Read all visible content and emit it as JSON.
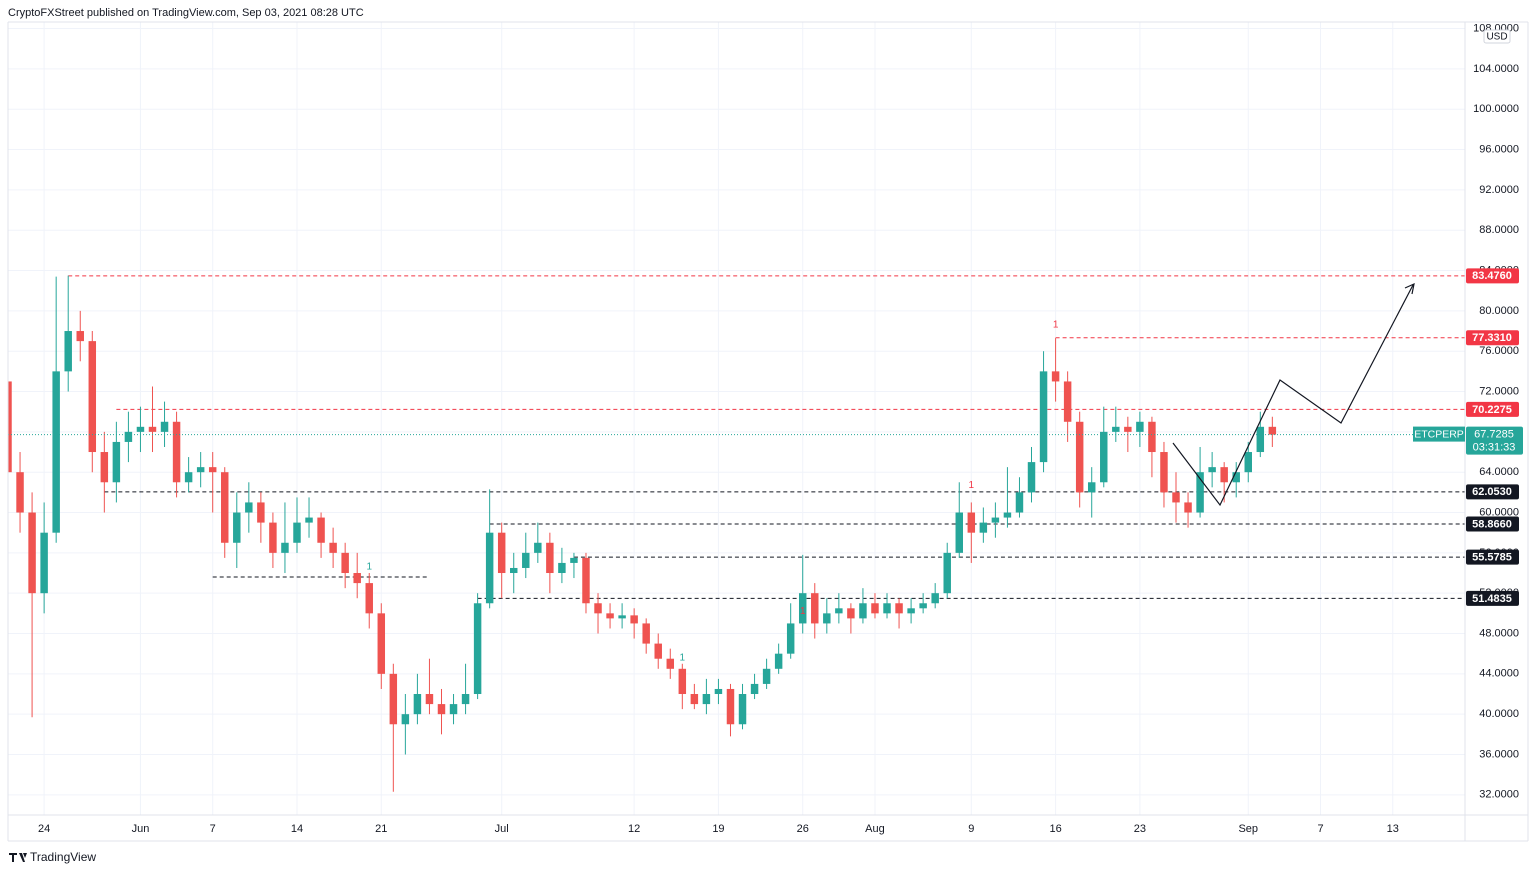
{
  "header": "CryptoFXStreet published on TradingView.com, Sep 03, 2021 08:28 UTC",
  "footer": "TradingView",
  "chart_data": {
    "type": "candlestick",
    "x": [
      "May 21",
      "May 22",
      "May 23",
      "May 24",
      "May 25",
      "May 26",
      "May 27",
      "May 28",
      "May 29",
      "May 30",
      "May 31",
      "Jun 01",
      "Jun 02",
      "Jun 03",
      "Jun 04",
      "Jun 05",
      "Jun 06",
      "Jun 07",
      "Jun 08",
      "Jun 09",
      "Jun 10",
      "Jun 11",
      "Jun 12",
      "Jun 13",
      "Jun 14",
      "Jun 15",
      "Jun 16",
      "Jun 17",
      "Jun 18",
      "Jun 19",
      "Jun 20",
      "Jun 21",
      "Jun 22",
      "Jun 23",
      "Jun 24",
      "Jun 25",
      "Jun 26",
      "Jun 27",
      "Jun 28",
      "Jun 29",
      "Jun 30",
      "Jul 01",
      "Jul 02",
      "Jul 03",
      "Jul 04",
      "Jul 05",
      "Jul 06",
      "Jul 07",
      "Jul 08",
      "Jul 09",
      "Jul 10",
      "Jul 11",
      "Jul 12",
      "Jul 13",
      "Jul 14",
      "Jul 15",
      "Jul 16",
      "Jul 17",
      "Jul 18",
      "Jul 19",
      "Jul 20",
      "Jul 21",
      "Jul 22",
      "Jul 23",
      "Jul 24",
      "Jul 25",
      "Jul 26",
      "Jul 27",
      "Jul 28",
      "Jul 29",
      "Jul 30",
      "Jul 31",
      "Aug 01",
      "Aug 02",
      "Aug 03",
      "Aug 04",
      "Aug 05",
      "Aug 06",
      "Aug 07",
      "Aug 08",
      "Aug 09",
      "Aug 10",
      "Aug 11",
      "Aug 12",
      "Aug 13",
      "Aug 14",
      "Aug 15",
      "Aug 16",
      "Aug 17",
      "Aug 18",
      "Aug 19",
      "Aug 20",
      "Aug 21",
      "Aug 22",
      "Aug 23",
      "Aug 24",
      "Aug 25",
      "Aug 26",
      "Aug 27",
      "Aug 28",
      "Aug 29",
      "Aug 30",
      "Aug 31",
      "Sep 01",
      "Sep 02",
      "Sep 03"
    ],
    "series": [
      {
        "name": "ETCPERP",
        "open": [
          73,
          64,
          60,
          52,
          58,
          74,
          78,
          77,
          66,
          63,
          67,
          68,
          68.5,
          68,
          69,
          63,
          64,
          64.5,
          64,
          57,
          60,
          61,
          59,
          56,
          57,
          59,
          59.5,
          57,
          56,
          54,
          53,
          50,
          44,
          39,
          40,
          42,
          41,
          40,
          41,
          42,
          51,
          58,
          54,
          54.5,
          56,
          57,
          54,
          55,
          55.5,
          51,
          50,
          49.5,
          49.8,
          49,
          47,
          45.5,
          44.5,
          42,
          41,
          42,
          42.5,
          39,
          42,
          43,
          44.5,
          46,
          49,
          52,
          49,
          50,
          50.5,
          49.5,
          51,
          50,
          51,
          50,
          50.5,
          51,
          52,
          56,
          60,
          58,
          59,
          59.5,
          60,
          62,
          65,
          74,
          73,
          69,
          62,
          63,
          68,
          68.5,
          68,
          69,
          66,
          62,
          61,
          60,
          64,
          64.5,
          63,
          64,
          66,
          68.5
        ],
        "high": [
          78,
          66,
          62,
          61,
          83.4,
          83.5,
          80,
          78,
          68,
          69,
          70,
          70.5,
          72.5,
          71,
          70,
          65.5,
          66,
          66,
          64.5,
          62,
          63,
          62,
          60,
          61,
          61.5,
          61.5,
          60,
          58.5,
          57,
          56,
          54,
          51,
          45,
          42,
          44,
          45.5,
          42.5,
          42,
          45,
          52,
          62.3,
          59,
          56,
          58,
          59,
          58,
          56.5,
          56,
          56,
          52,
          51,
          51,
          50.5,
          49.5,
          48,
          46.5,
          45,
          43,
          43.5,
          43.5,
          43,
          43,
          44,
          45.5,
          47,
          51,
          55.8,
          53,
          51.5,
          52,
          51,
          52.5,
          52,
          52,
          51.5,
          51.5,
          52,
          53,
          57,
          63,
          61,
          60.5,
          61,
          64.5,
          63.5,
          66.5,
          76,
          77.3,
          74,
          70,
          64.5,
          70.5,
          70.5,
          69.5,
          70,
          69.5,
          67,
          64,
          62,
          66.5,
          66,
          65,
          65,
          67,
          70,
          69.5
        ],
        "low": [
          62,
          58,
          39.7,
          50,
          57,
          72,
          75,
          64,
          60,
          61,
          65,
          66,
          66,
          66.5,
          61.5,
          62,
          62.5,
          60,
          55.5,
          54.5,
          58,
          57,
          54.5,
          54,
          56,
          57.5,
          55.5,
          54.5,
          52.5,
          51.5,
          48.5,
          42.5,
          32.3,
          36,
          39,
          40,
          38,
          39,
          40,
          41.5,
          50.5,
          51.5,
          52,
          53.5,
          55,
          52,
          53,
          53.5,
          50,
          48,
          48.5,
          48.5,
          47.5,
          46,
          44.5,
          43.5,
          40.5,
          40.5,
          40,
          41,
          37.8,
          38.5,
          41.5,
          42.5,
          44,
          45.5,
          48,
          47.5,
          48,
          49,
          48,
          49,
          49.5,
          49.5,
          48.5,
          49,
          50,
          50.5,
          51.5,
          55.5,
          55,
          57,
          57.5,
          58.5,
          59.5,
          61,
          64,
          71,
          67,
          60.5,
          59.5,
          62.5,
          67,
          66,
          66.5,
          63.5,
          60.5,
          59,
          58.5,
          59.5,
          62.5,
          61,
          61.5,
          63,
          65.5,
          66.5
        ],
        "close": [
          64,
          60,
          52,
          58,
          74,
          78,
          77,
          66,
          63,
          67,
          68,
          68.5,
          68,
          69,
          63,
          64,
          64.5,
          64,
          57,
          60,
          61,
          59,
          56,
          57,
          59,
          59.5,
          57,
          56,
          54,
          53,
          50,
          44,
          39,
          40,
          42,
          41,
          40,
          41,
          42,
          51,
          58,
          54,
          54.5,
          56,
          57,
          54,
          55,
          55.5,
          51,
          50,
          49.5,
          49.8,
          49,
          47,
          45.5,
          44.5,
          42,
          41,
          42,
          42.5,
          39,
          42,
          43,
          44.5,
          46,
          49,
          52,
          49,
          50,
          50.5,
          49.5,
          51,
          50,
          51,
          50,
          50.5,
          51,
          52,
          56,
          60,
          58,
          59,
          59.5,
          60,
          62,
          65,
          74,
          73,
          69,
          62,
          63,
          68,
          68.5,
          68,
          69,
          66,
          62,
          61,
          60,
          64,
          64.5,
          63,
          64,
          66,
          68.5,
          67.7285
        ]
      }
    ],
    "up_color": "#26a69a",
    "down_color": "#ef5350",
    "xlim": [
      "May 21",
      "Sep 19"
    ],
    "xticks": [
      {
        "value": "May 24",
        "label": "24"
      },
      {
        "value": "Jun 01",
        "label": "Jun"
      },
      {
        "value": "Jun 07",
        "label": "7"
      },
      {
        "value": "Jun 14",
        "label": "14"
      },
      {
        "value": "Jun 21",
        "label": "21"
      },
      {
        "value": "Jul 01",
        "label": "Jul"
      },
      {
        "value": "Jul 12",
        "label": "12"
      },
      {
        "value": "Jul 19",
        "label": "19"
      },
      {
        "value": "Jul 26",
        "label": "26"
      },
      {
        "value": "Aug 01",
        "label": "Aug"
      },
      {
        "value": "Aug 09",
        "label": "9"
      },
      {
        "value": "Aug 16",
        "label": "16"
      },
      {
        "value": "Aug 23",
        "label": "23"
      },
      {
        "value": "Sep 01",
        "label": "Sep"
      },
      {
        "value": "Sep 07",
        "label": "7"
      },
      {
        "value": "Sep 13",
        "label": "13"
      }
    ],
    "ylim": [
      30,
      108.65
    ],
    "yticks": [
      {
        "value": 32,
        "label": "32.0000"
      },
      {
        "value": 36,
        "label": "36.0000"
      },
      {
        "value": 40,
        "label": "40.0000"
      },
      {
        "value": 44,
        "label": "44.0000"
      },
      {
        "value": 48,
        "label": "48.0000"
      },
      {
        "value": 52,
        "label": "52.0000"
      },
      {
        "value": 56,
        "label": "56.0000"
      },
      {
        "value": 60,
        "label": "60.0000"
      },
      {
        "value": 64,
        "label": "64.0000"
      },
      {
        "value": 68,
        "label": "68.0000"
      },
      {
        "value": 72,
        "label": "72.0000"
      },
      {
        "value": 76,
        "label": "76.0000"
      },
      {
        "value": 80,
        "label": "80.0000"
      },
      {
        "value": 84,
        "label": "84.0000"
      },
      {
        "value": 88,
        "label": "88.0000"
      },
      {
        "value": 92,
        "label": "92.0000"
      },
      {
        "value": 96,
        "label": "96.0000"
      },
      {
        "value": 100,
        "label": "100.0000"
      },
      {
        "value": 104,
        "label": "104.0000"
      },
      {
        "value": 108,
        "label": "108.0000"
      }
    ],
    "grid": true,
    "y_unit": "USD",
    "levels": [
      {
        "value": 83.476,
        "label": "83.4760",
        "color": "#f23645",
        "start": "May 26"
      },
      {
        "value": 77.331,
        "label": "77.3310",
        "color": "#f23645",
        "start": "Aug 16"
      },
      {
        "value": 70.2275,
        "color": "#f23645",
        "start": "May 30"
      },
      {
        "value": 62.053,
        "label": "62.0530",
        "color": "#131722",
        "start": "May 29"
      },
      {
        "value": 58.866,
        "label": "58.8660",
        "color": "#131722",
        "start": "Jun 30"
      },
      {
        "value": 55.5785,
        "color": "#131722",
        "start": "Jul 07"
      },
      {
        "value": 51.4835,
        "color": "#131722",
        "start": "Jun 29"
      },
      {
        "value": 53.6,
        "color": "#131722",
        "start": "Jun 07",
        "end": "Jun 25"
      }
    ],
    "last_price": {
      "value": 67.7285,
      "countdown": "03:31:33",
      "color": "#26a69a"
    },
    "annotations": [
      {
        "text": "1",
        "x": "Aug 16",
        "y": 78.6,
        "color": "#f23645"
      },
      {
        "text": "1",
        "x": "Aug 09",
        "y": 62.7,
        "color": "#f23645"
      },
      {
        "text": "1",
        "x": "Jul 26",
        "y": 50.2,
        "color": "#f23645"
      },
      {
        "text": "1",
        "x": "Jun 20",
        "y": 54.6,
        "color": "#26a69a"
      },
      {
        "text": "1",
        "x": "Jul 16",
        "y": 45.6,
        "color": "#26a69a"
      }
    ]
  }
}
